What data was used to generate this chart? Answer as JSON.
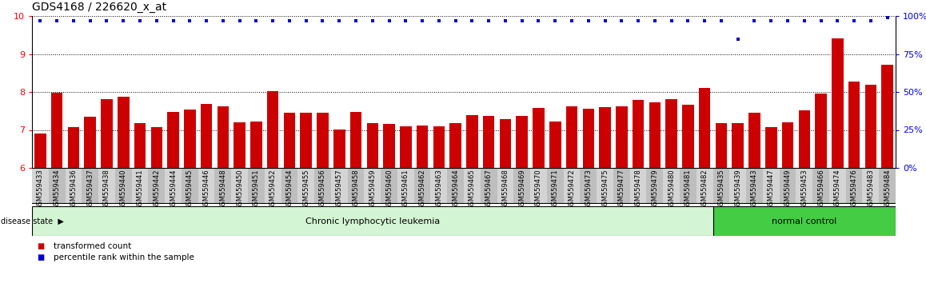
{
  "title": "GDS4168 / 226620_x_at",
  "samples": [
    "GSM559433",
    "GSM559434",
    "GSM559436",
    "GSM559437",
    "GSM559438",
    "GSM559440",
    "GSM559441",
    "GSM559442",
    "GSM559444",
    "GSM559445",
    "GSM559446",
    "GSM559448",
    "GSM559450",
    "GSM559451",
    "GSM559452",
    "GSM559454",
    "GSM559455",
    "GSM559456",
    "GSM559457",
    "GSM559458",
    "GSM559459",
    "GSM559460",
    "GSM559461",
    "GSM559462",
    "GSM559463",
    "GSM559464",
    "GSM559465",
    "GSM559467",
    "GSM559468",
    "GSM559469",
    "GSM559470",
    "GSM559471",
    "GSM559472",
    "GSM559473",
    "GSM559475",
    "GSM559477",
    "GSM559478",
    "GSM559479",
    "GSM559480",
    "GSM559481",
    "GSM559482",
    "GSM559435",
    "GSM559439",
    "GSM559443",
    "GSM559447",
    "GSM559449",
    "GSM559453",
    "GSM559466",
    "GSM559474",
    "GSM559476",
    "GSM559483",
    "GSM559484"
  ],
  "bar_values": [
    6.9,
    7.97,
    7.08,
    7.35,
    7.82,
    7.87,
    7.18,
    7.08,
    7.47,
    7.54,
    7.68,
    7.63,
    7.19,
    7.23,
    8.02,
    7.46,
    7.45,
    7.45,
    7.02,
    7.47,
    7.17,
    7.16,
    7.1,
    7.12,
    7.1,
    7.18,
    7.38,
    7.36,
    7.28,
    7.36,
    7.58,
    7.22,
    7.62,
    7.56,
    7.6,
    7.62,
    7.78,
    7.73,
    7.82,
    7.67,
    8.1,
    7.18,
    7.17,
    7.45,
    7.08,
    7.19,
    7.52,
    7.95,
    9.42,
    8.27,
    8.2,
    8.72
  ],
  "percentile_values": [
    97,
    97,
    97,
    97,
    97,
    97,
    97,
    97,
    97,
    97,
    97,
    97,
    97,
    97,
    97,
    97,
    97,
    97,
    97,
    97,
    97,
    97,
    97,
    97,
    97,
    97,
    97,
    97,
    97,
    97,
    97,
    97,
    97,
    97,
    97,
    97,
    97,
    97,
    97,
    97,
    97,
    97,
    85,
    97,
    97,
    97,
    97,
    97,
    97,
    97,
    97,
    99
  ],
  "disease_groups": [
    {
      "label": "Chronic lymphocytic leukemia",
      "start": 0,
      "end": 41,
      "color": "#d4f5d4"
    },
    {
      "label": "normal control",
      "start": 41,
      "end": 52,
      "color": "#44cc44"
    }
  ],
  "bar_color": "#cc0000",
  "dot_color": "#0000cc",
  "ylim_left": [
    6,
    10
  ],
  "ylim_right": [
    0,
    100
  ],
  "yticks_left": [
    6,
    7,
    8,
    9,
    10
  ],
  "yticks_right": [
    0,
    25,
    50,
    75,
    100
  ],
  "background_color": "#ffffff",
  "xticklabel_bg_odd": "#d4d4d4",
  "xticklabel_bg_even": "#bebebe"
}
